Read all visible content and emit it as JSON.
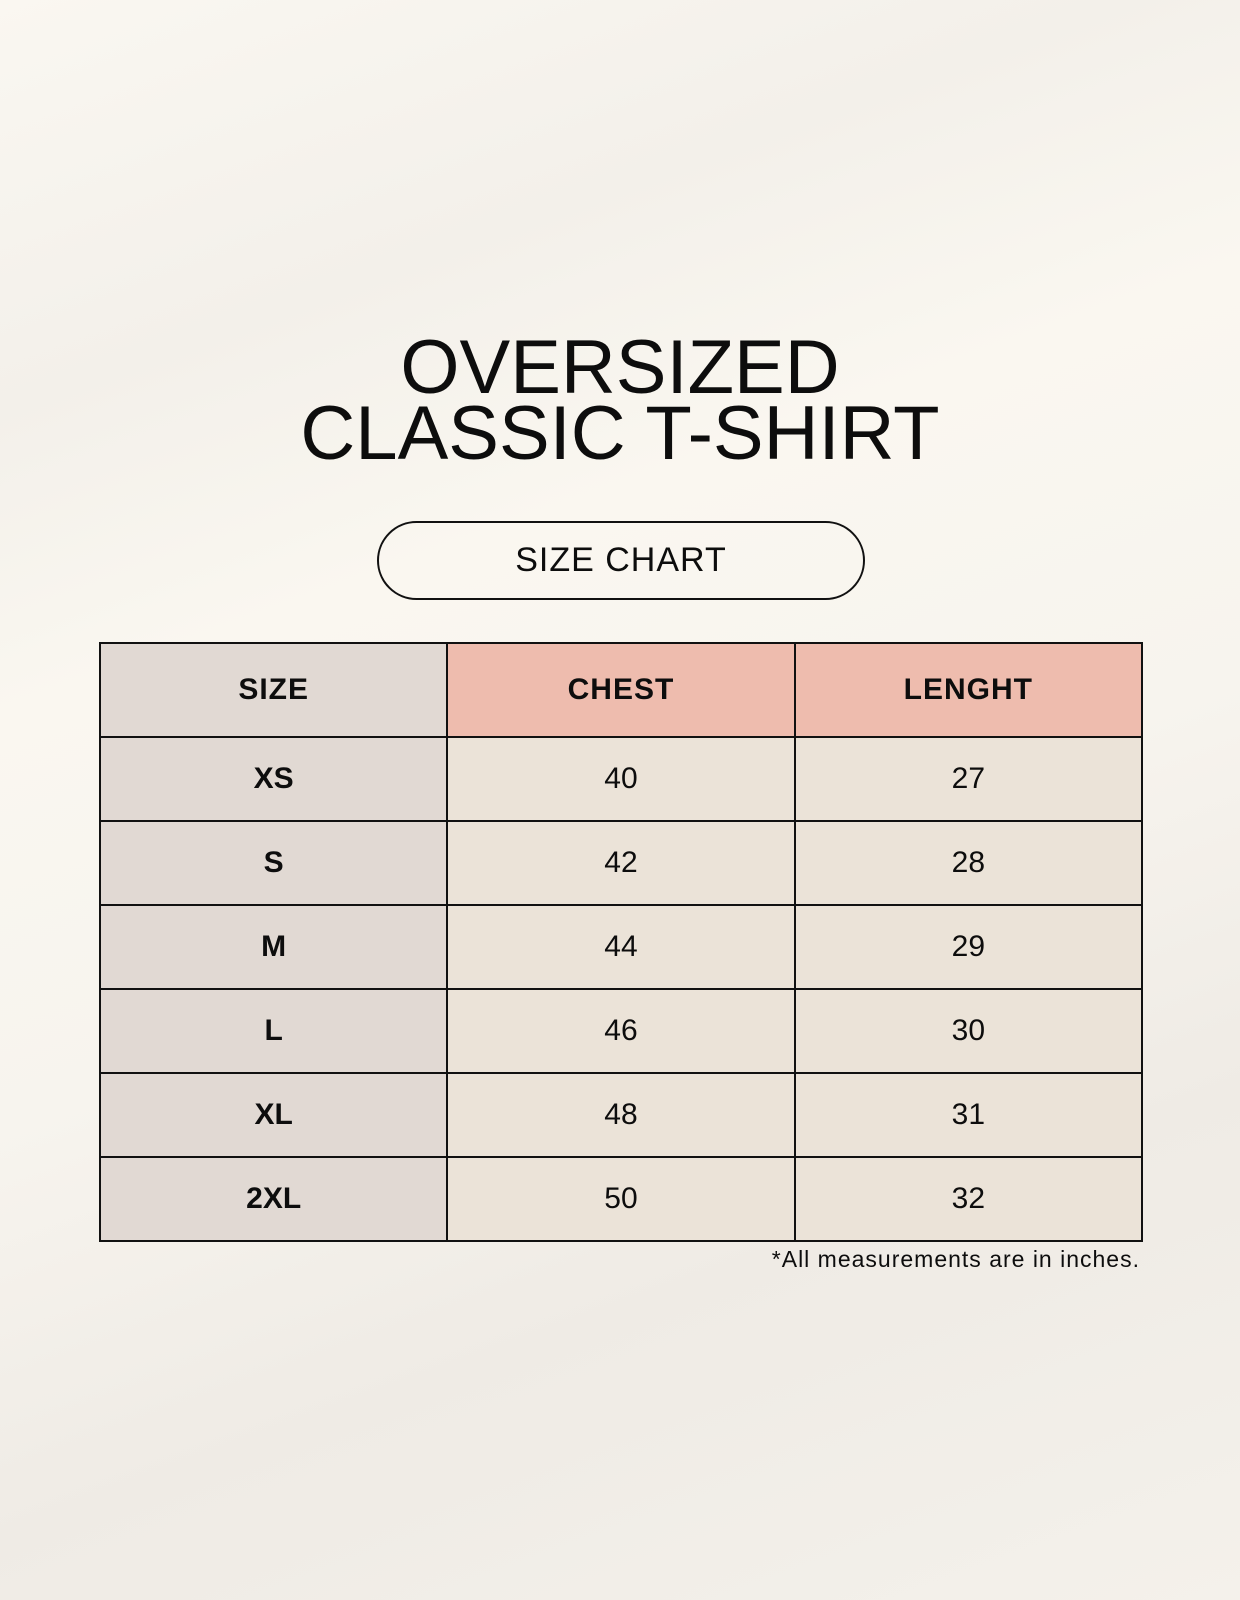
{
  "title": {
    "line1": "OVERSIZED",
    "line2": "CLASSIC T-SHIRT"
  },
  "subtitle": "SIZE CHART",
  "colors": {
    "size_column": "#e1d9d3",
    "header_accent": "#eebcae",
    "value_cells": "#ebe3d8"
  },
  "table": {
    "headers": [
      "SIZE",
      "CHEST",
      "LENGHT"
    ],
    "rows": [
      [
        "XS",
        "40",
        "27"
      ],
      [
        "S",
        "42",
        "28"
      ],
      [
        "M",
        "44",
        "29"
      ],
      [
        "L",
        "46",
        "30"
      ],
      [
        "XL",
        "48",
        "31"
      ],
      [
        "2XL",
        "50",
        "32"
      ]
    ]
  },
  "footnote": "*All measurements are in inches."
}
